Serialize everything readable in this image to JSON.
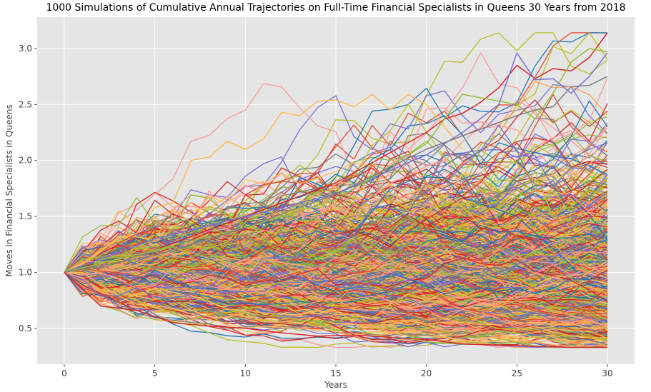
{
  "chart_data": {
    "type": "line",
    "title": "1000 Simulations of Cumulative Annual Trajectories on Full-Time Financial Specialists in Queens 30 Years from 2018",
    "xlabel": "Years",
    "ylabel": "Moves in Financial Specialists in Queens",
    "xlim": [
      -1.5,
      31.5
    ],
    "ylim": [
      0.18,
      3.28
    ],
    "x_ticks": [
      "0",
      "5",
      "10",
      "15",
      "20",
      "25",
      "30"
    ],
    "y_ticks": [
      "0.5",
      "1.0",
      "1.5",
      "2.0",
      "2.5",
      "3.0"
    ],
    "grid": true,
    "style": "ggplot",
    "simulation_count": 1000,
    "start_value": 1.0,
    "years": 30,
    "final_value_range": [
      0.33,
      3.14
    ],
    "series_colors": [
      "#1f77b4",
      "#d62728",
      "#7f7f7f",
      "#bcbd22",
      "#ffbb54",
      "#ff9896",
      "#7570d8",
      "#8fbf3a",
      "#e24a33",
      "#f9a55d"
    ],
    "highlighted_paths": [
      {
        "x": [
          0,
          1,
          2,
          3,
          4,
          5,
          6,
          7,
          8,
          9,
          10,
          11,
          12,
          13,
          14,
          15,
          16,
          17,
          18,
          19,
          20,
          21,
          22
        ],
        "values": [
          1.0,
          1.08,
          1.2,
          1.3,
          1.35,
          1.58,
          1.62,
          2.0,
          2.03,
          2.17,
          2.1,
          2.19,
          2.43,
          2.4,
          2.53,
          2.54,
          2.48,
          2.59,
          2.45,
          2.59,
          2.5,
          2.3,
          2.1
        ],
        "color": "#ffbb54"
      },
      {
        "x": [
          0,
          5,
          10,
          15,
          20,
          21,
          22,
          23,
          24,
          25,
          26,
          27,
          28,
          29,
          30
        ],
        "values": [
          1.0,
          1.2,
          1.5,
          1.8,
          2.25,
          2.37,
          2.42,
          2.52,
          2.65,
          2.85,
          2.73,
          2.82,
          2.8,
          2.92,
          3.14
        ],
        "color": "#d62728"
      },
      {
        "x": [
          0,
          5,
          10,
          15,
          20,
          22,
          24,
          25,
          26,
          27,
          28,
          29,
          30
        ],
        "values": [
          1.0,
          1.3,
          1.5,
          1.7,
          2.05,
          2.25,
          2.5,
          2.96,
          2.72,
          2.73,
          2.6,
          2.75,
          2.96
        ],
        "color": "#7570d8"
      },
      {
        "x": [
          0,
          5,
          10,
          15,
          20,
          22,
          25,
          26,
          27,
          28,
          29,
          30
        ],
        "values": [
          1.0,
          1.2,
          1.4,
          1.65,
          2.15,
          2.59,
          2.5,
          2.37,
          2.6,
          2.88,
          3.0,
          2.97
        ],
        "color": "#8fbf3a"
      },
      {
        "x": [
          0,
          5,
          10,
          15,
          20,
          25,
          26,
          27,
          28,
          29,
          30
        ],
        "values": [
          1.0,
          1.15,
          1.4,
          1.7,
          2.1,
          2.4,
          2.45,
          2.48,
          2.66,
          2.67,
          2.75
        ],
        "color": "#7f7f7f"
      },
      {
        "x": [
          0,
          2,
          4,
          6,
          8,
          10,
          12,
          14,
          16,
          18,
          20,
          22,
          24,
          26,
          28,
          30
        ],
        "values": [
          1.0,
          0.7,
          0.66,
          0.55,
          0.52,
          0.5,
          0.46,
          0.43,
          0.44,
          0.42,
          0.4,
          0.36,
          0.35,
          0.34,
          0.33,
          0.33
        ],
        "color": "#d62728"
      }
    ]
  }
}
